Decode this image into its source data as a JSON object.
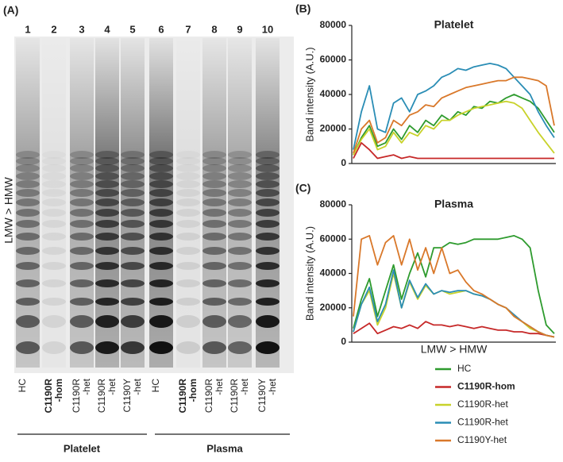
{
  "gel": {
    "panel": "(A)",
    "axis_label": "LMW > HMW",
    "lanes": [
      {
        "number": 1,
        "label": [
          "HC"
        ],
        "bold": false
      },
      {
        "number": 2,
        "label": [
          "C1190R",
          "-hom"
        ],
        "bold": true
      },
      {
        "number": 3,
        "label": [
          "C1190R",
          "-het"
        ],
        "bold": false
      },
      {
        "number": 4,
        "label": [
          "C1190R",
          "-het"
        ],
        "bold": false
      },
      {
        "number": 5,
        "label": [
          "C1190Y",
          "-het"
        ],
        "bold": false
      },
      {
        "number": 6,
        "label": [
          "HC"
        ],
        "bold": false
      },
      {
        "number": 7,
        "label": [
          "C1190R",
          "-hom"
        ],
        "bold": true
      },
      {
        "number": 8,
        "label": [
          "C1190R",
          "-het"
        ],
        "bold": false
      },
      {
        "number": 9,
        "label": [
          "C1190R",
          "-het"
        ],
        "bold": false
      },
      {
        "number": 10,
        "label": [
          "C1190Y",
          "-het"
        ],
        "bold": false
      }
    ],
    "groups": [
      "Platelet",
      "Plasma"
    ]
  },
  "chart_data": [
    {
      "type": "line",
      "panel": "(B)",
      "title": "Platelet",
      "y_label": "Band intensity (A.U.)",
      "categories": [
        null,
        null,
        null,
        null,
        null,
        null,
        null,
        null,
        null,
        null,
        null,
        null,
        null,
        null,
        null,
        null,
        null,
        null,
        null,
        null,
        null,
        null,
        null,
        null,
        null,
        null
      ],
      "ylim": [
        0,
        80000
      ],
      "yticks": [
        0,
        20000,
        40000,
        60000,
        80000
      ],
      "series": [
        {
          "color": "#2e9b2e",
          "values": [
            5000,
            15000,
            22000,
            10000,
            12000,
            20000,
            14000,
            22000,
            18000,
            25000,
            22000,
            28000,
            25000,
            30000,
            28000,
            33000,
            32000,
            36000,
            35000,
            38000,
            40000,
            38000,
            36000,
            32000,
            25000,
            18000
          ]
        },
        {
          "color": "#c62828",
          "values": [
            3000,
            12000,
            8000,
            3000,
            4000,
            5000,
            3000,
            4000,
            3000,
            3000,
            3000,
            3000,
            3000,
            3000,
            3000,
            3000,
            3000,
            3000,
            3000,
            3000,
            3000,
            3000,
            3000,
            3000,
            3000,
            3000
          ]
        },
        {
          "color": "#c8d22a",
          "values": [
            5000,
            14000,
            20000,
            8000,
            10000,
            18000,
            12000,
            18000,
            16000,
            22000,
            20000,
            25000,
            25000,
            28000,
            30000,
            32000,
            33000,
            34000,
            35000,
            36000,
            35000,
            32000,
            25000,
            18000,
            12000,
            6000
          ]
        },
        {
          "color": "#2a8db5",
          "values": [
            8000,
            30000,
            45000,
            20000,
            18000,
            35000,
            38000,
            30000,
            40000,
            42000,
            45000,
            50000,
            52000,
            55000,
            54000,
            56000,
            57000,
            58000,
            57000,
            55000,
            50000,
            45000,
            40000,
            30000,
            22000,
            15000
          ]
        },
        {
          "color": "#d9782a",
          "values": [
            6000,
            20000,
            25000,
            12000,
            15000,
            25000,
            22000,
            28000,
            30000,
            34000,
            33000,
            38000,
            40000,
            42000,
            44000,
            45000,
            46000,
            47000,
            48000,
            48000,
            50000,
            50000,
            49000,
            48000,
            45000,
            22000
          ]
        }
      ]
    },
    {
      "type": "line",
      "panel": "(C)",
      "title": "Plasma",
      "y_label": "Band intensity (A.U.)",
      "x_label": "LMW > HMW",
      "categories": [
        null,
        null,
        null,
        null,
        null,
        null,
        null,
        null,
        null,
        null,
        null,
        null,
        null,
        null,
        null,
        null,
        null,
        null,
        null,
        null,
        null,
        null,
        null,
        null,
        null,
        null
      ],
      "ylim": [
        0,
        80000
      ],
      "yticks": [
        0,
        20000,
        40000,
        60000,
        80000
      ],
      "series": [
        {
          "name": "HC",
          "color": "#2e9b2e",
          "values": [
            8000,
            25000,
            37000,
            15000,
            30000,
            45000,
            25000,
            40000,
            52000,
            38000,
            55000,
            55000,
            58000,
            57000,
            58000,
            60000,
            60000,
            60000,
            60000,
            61000,
            62000,
            60000,
            55000,
            30000,
            10000,
            5000
          ]
        },
        {
          "name": "C1190R-hom",
          "color": "#c62828",
          "bold": true,
          "values": [
            5000,
            8000,
            11000,
            5000,
            7000,
            9000,
            8000,
            10000,
            8000,
            12000,
            10000,
            10000,
            9000,
            10000,
            9000,
            8000,
            9000,
            8000,
            7000,
            7000,
            6000,
            6000,
            5000,
            5000,
            4000,
            3000
          ]
        },
        {
          "name": "C1190R-het",
          "color": "#c8d22a",
          "values": [
            6000,
            22000,
            30000,
            10000,
            20000,
            40000,
            20000,
            35000,
            25000,
            33000,
            28000,
            30000,
            28000,
            29000,
            30000,
            28000,
            27000,
            25000,
            22000,
            20000,
            15000,
            12000,
            8000,
            6000,
            4000,
            3000
          ]
        },
        {
          "name": "C1190R-het",
          "color": "#2a8db5",
          "values": [
            6000,
            22000,
            32000,
            12000,
            22000,
            42000,
            20000,
            36000,
            26000,
            34000,
            28000,
            30000,
            29000,
            30000,
            30000,
            28000,
            27000,
            25000,
            22000,
            20000,
            16000,
            12000,
            9000,
            6000,
            4000,
            3000
          ]
        },
        {
          "name": "C1190Y-het",
          "color": "#d9782a",
          "values": [
            15000,
            60000,
            62000,
            45000,
            58000,
            62000,
            45000,
            60000,
            42000,
            55000,
            40000,
            55000,
            40000,
            42000,
            35000,
            30000,
            28000,
            25000,
            22000,
            20000,
            15000,
            12000,
            9000,
            6000,
            4000,
            3000
          ]
        }
      ],
      "legend": "below"
    }
  ]
}
